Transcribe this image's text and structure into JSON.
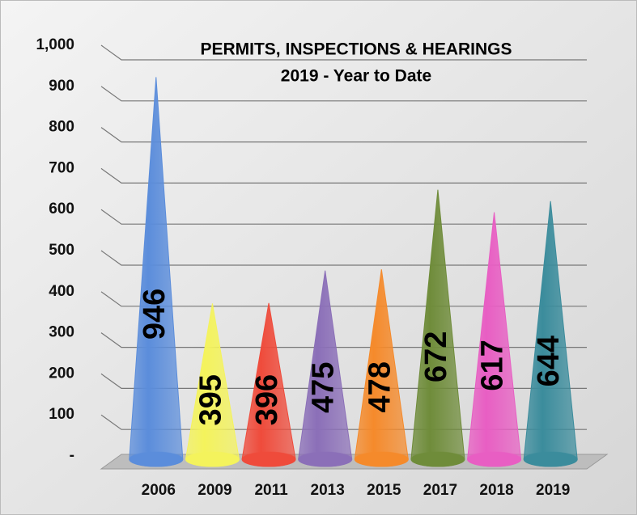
{
  "chart_data": {
    "type": "cone",
    "title": "PERMITS, INSPECTIONS & HEARINGS",
    "subtitle": "2019 - Year to Date",
    "categories": [
      "2006",
      "2009",
      "2011",
      "2013",
      "2015",
      "2017",
      "2018",
      "2019"
    ],
    "values": [
      946,
      395,
      396,
      475,
      478,
      672,
      617,
      644
    ],
    "colors": [
      "#5b8ddb",
      "#f4f35c",
      "#ef4b3b",
      "#8b6fb8",
      "#f58a2b",
      "#6f8c3a",
      "#e85ec3",
      "#3b8c9c"
    ],
    "ylim": [
      0,
      1000
    ],
    "yticks": [
      {
        "value": 0,
        "label": "-"
      },
      100,
      200,
      300,
      400,
      500,
      600,
      700,
      800,
      900,
      {
        "value": 1000,
        "label": "1,000"
      }
    ],
    "grid": true
  }
}
